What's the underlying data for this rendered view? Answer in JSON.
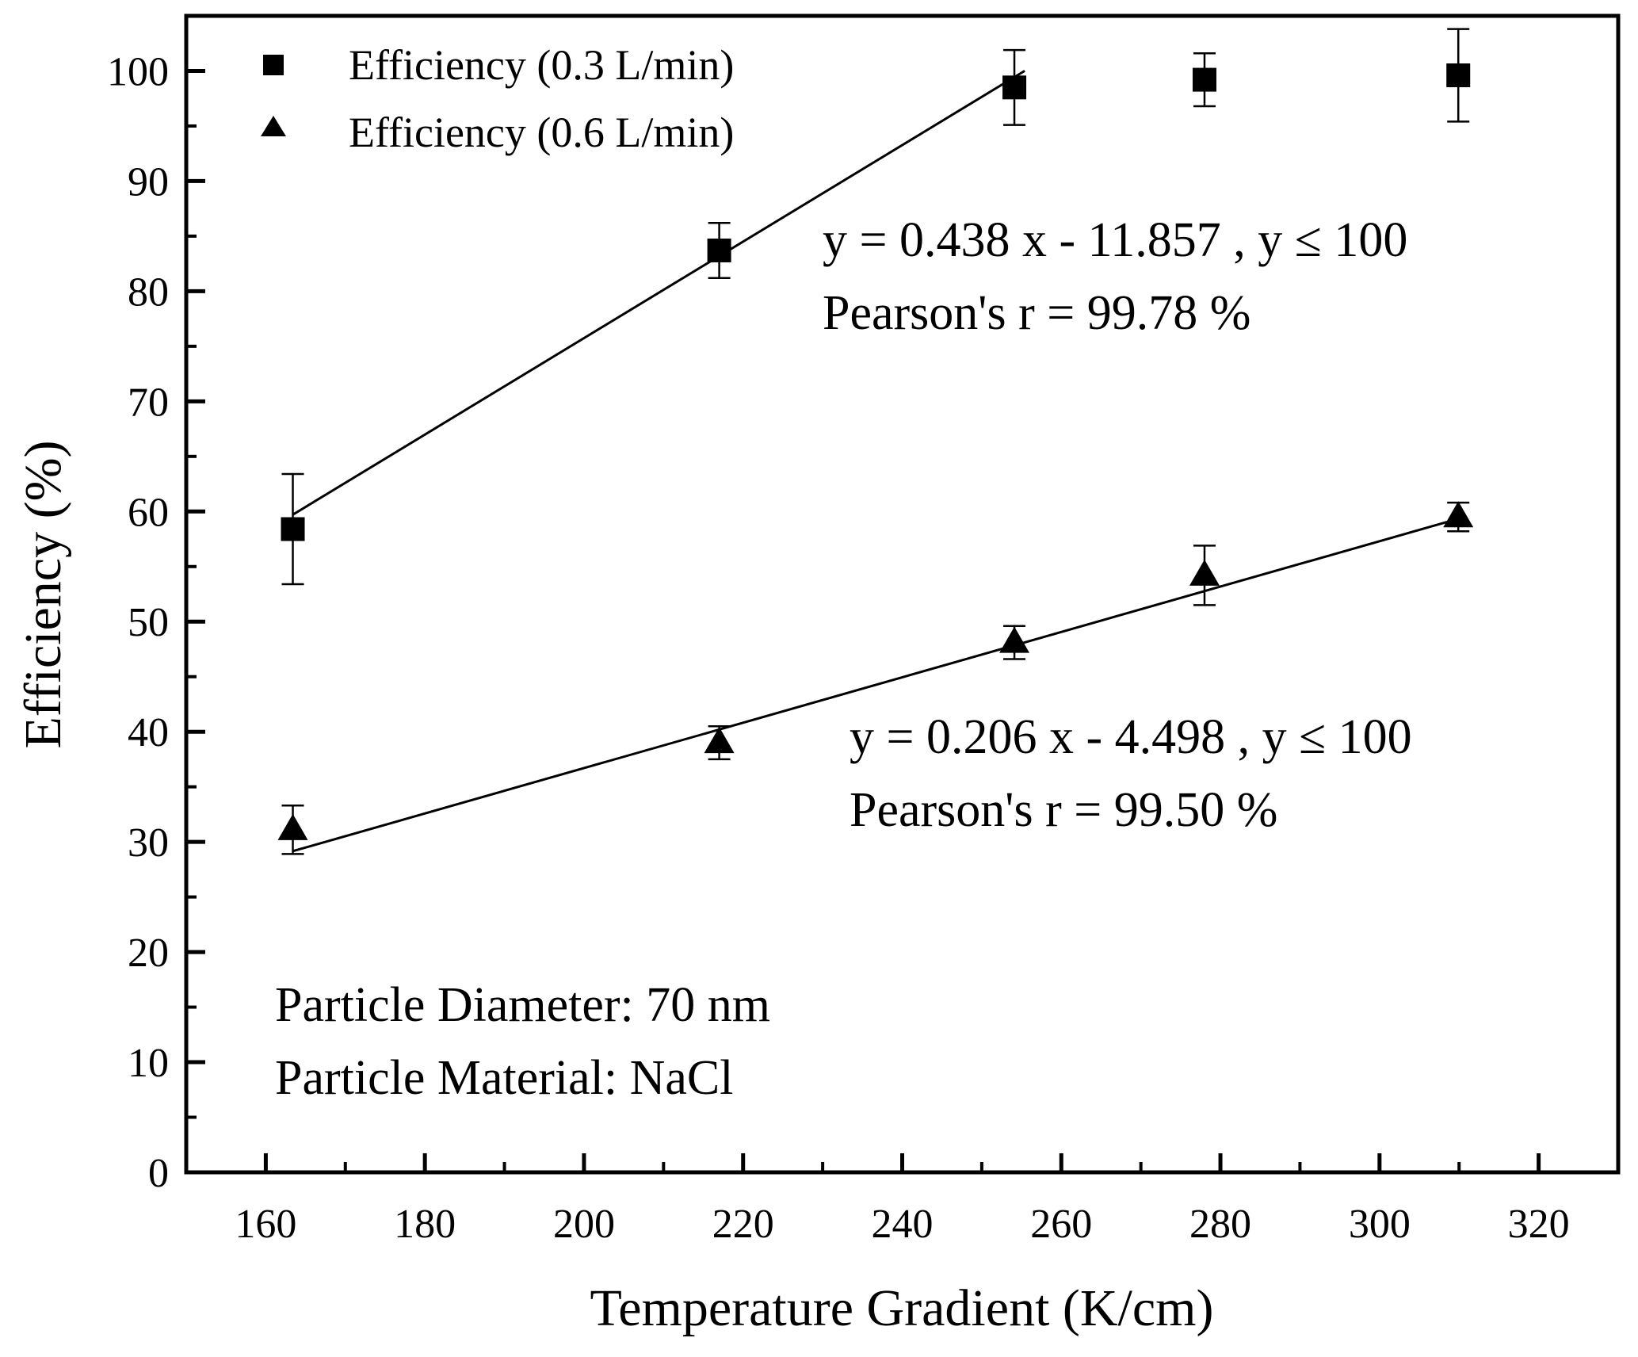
{
  "chart_data": {
    "type": "scatter",
    "xlabel": "Temperature Gradient (K/cm)",
    "ylabel": "Efficiency (%)",
    "xlim": [
      150,
      330
    ],
    "ylim": [
      0,
      105
    ],
    "xticks": [
      160,
      180,
      200,
      220,
      240,
      260,
      280,
      300,
      320
    ],
    "yticks": [
      0,
      10,
      20,
      30,
      40,
      50,
      60,
      70,
      80,
      90,
      100
    ],
    "grid": false,
    "legend_position": "top-left",
    "series": [
      {
        "name": "Efficiency (0.3 L/min)",
        "marker": "square",
        "color": "#000000",
        "x": [
          163.4,
          217.0,
          254.1,
          278.0,
          309.9
        ],
        "y": [
          58.4,
          83.7,
          98.5,
          99.2,
          99.6
        ],
        "error": [
          5.0,
          2.5,
          3.4,
          2.4,
          4.2
        ],
        "fit": {
          "slope": 0.438,
          "intercept": -11.857,
          "x_range": [
            163.4,
            255.4
          ]
        }
      },
      {
        "name": "Efficiency (0.6 L/min)",
        "marker": "triangle",
        "color": "#000000",
        "x": [
          163.4,
          217.0,
          254.1,
          278.0,
          309.9
        ],
        "y": [
          31.1,
          39.0,
          48.1,
          54.2,
          59.5
        ],
        "error": [
          2.2,
          1.5,
          1.5,
          2.7,
          1.3
        ],
        "fit": {
          "slope": 0.206,
          "intercept": -4.498,
          "x_range": [
            163.4,
            309.9
          ]
        }
      }
    ],
    "annotations": {
      "fit1_equation": "y = 0.438 x - 11.857 , y ≤ 100",
      "fit1_pearson": "Pearson's r = 99.78 %",
      "fit2_equation": "y = 0.206 x - 4.498 , y ≤ 100",
      "fit2_pearson": "Pearson's r = 99.50 %",
      "diameter": "Particle Diameter: 70 nm",
      "material": "Particle Material: NaCl"
    }
  }
}
